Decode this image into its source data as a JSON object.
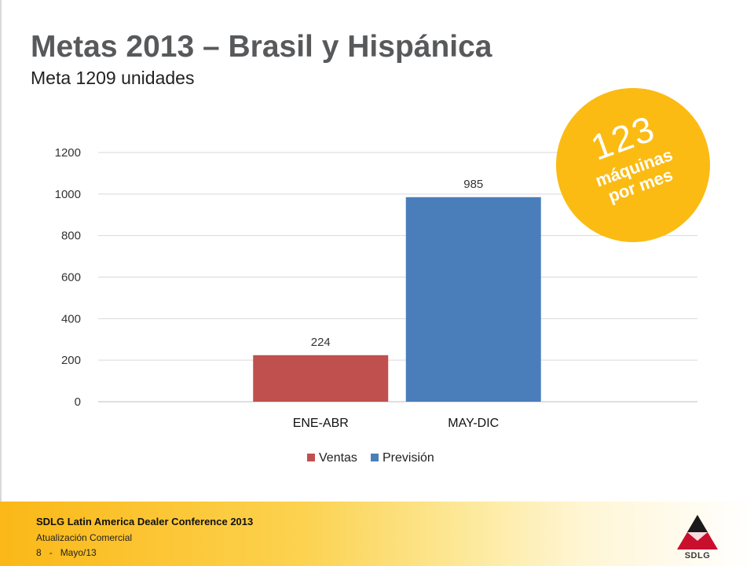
{
  "slide": {
    "title": "Metas 2013 – Brasil y Hispánica",
    "subtitle": "Meta 1209 unidades"
  },
  "badge": {
    "number": "123",
    "line1": "máquinas",
    "line2": "por mes",
    "color": "#fbbb12"
  },
  "chart_data": {
    "type": "bar",
    "categories": [
      "ENE-ABR",
      "MAY-DIC"
    ],
    "series": [
      {
        "name": "Ventas",
        "color": "#c0504d",
        "values": [
          224,
          null
        ]
      },
      {
        "name": "Previsión",
        "color": "#4a7ebb",
        "values": [
          null,
          985
        ]
      }
    ],
    "ylim": [
      0,
      1200
    ],
    "yticks": [
      0,
      200,
      400,
      600,
      800,
      1000,
      1200
    ],
    "grid": true,
    "legend_position": "bottom",
    "data_labels": true
  },
  "footer": {
    "title": "SDLG Latin America Dealer Conference 2013",
    "subtitle": "Atualización Comercial",
    "page_number": "8",
    "separator": "-",
    "date": "Mayo/13",
    "logo_text": "SDLG"
  }
}
